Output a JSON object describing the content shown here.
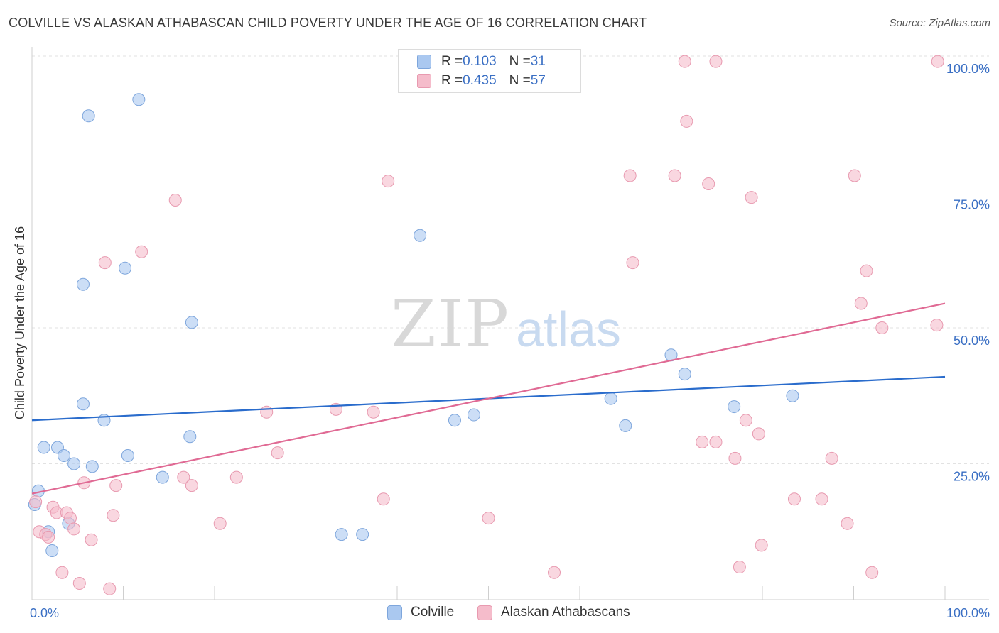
{
  "title": "COLVILLE VS ALASKAN ATHABASCAN CHILD POVERTY UNDER THE AGE OF 16 CORRELATION CHART",
  "source": "Source: ZipAtlas.com",
  "watermark": {
    "zip": "ZIP",
    "atlas": "atlas"
  },
  "legend_top": {
    "rows": [
      {
        "r_label": "R = ",
        "r_value": "0.103",
        "n_label": "N = ",
        "n_value": "31",
        "color": "#aac8f0"
      },
      {
        "r_label": "R = ",
        "r_value": "0.435",
        "n_label": "N = ",
        "n_value": "57",
        "color": "#f5bccb"
      }
    ]
  },
  "legend_bottom": [
    {
      "label": "Colville",
      "color": "#aac8f0"
    },
    {
      "label": "Alaskan Athabascans",
      "color": "#f5bccb"
    }
  ],
  "chart_data": {
    "type": "scatter",
    "title": "COLVILLE VS ALASKAN ATHABASCAN CHILD POVERTY UNDER THE AGE OF 16 CORRELATION CHART",
    "xlabel": "",
    "ylabel": "Child Poverty Under the Age of 16",
    "xlim": [
      0,
      100
    ],
    "ylim": [
      0,
      100
    ],
    "x_tick_labels": [
      "0.0%",
      "100.0%"
    ],
    "y_tick_labels": [
      "25.0%",
      "50.0%",
      "75.0%",
      "100.0%"
    ],
    "y_ticks": [
      25,
      50,
      75,
      100
    ],
    "grid": true,
    "series": [
      {
        "name": "Colville",
        "color": "#aac8f0",
        "stroke": "#7ea6dc",
        "trend_color": "#2a6ccc",
        "trend": {
          "x": [
            0,
            100
          ],
          "y": [
            33.0,
            41.0
          ]
        },
        "points": [
          [
            0.3,
            17.5
          ],
          [
            0.7,
            20.0
          ],
          [
            1.3,
            28.0
          ],
          [
            1.8,
            12.5
          ],
          [
            2.2,
            9.0
          ],
          [
            2.8,
            28.0
          ],
          [
            3.5,
            26.5
          ],
          [
            4.0,
            14.0
          ],
          [
            4.6,
            25.0
          ],
          [
            5.6,
            36.0
          ],
          [
            5.6,
            58.0
          ],
          [
            6.2,
            89.0
          ],
          [
            6.6,
            24.5
          ],
          [
            7.9,
            33.0
          ],
          [
            10.2,
            61.0
          ],
          [
            10.5,
            26.5
          ],
          [
            11.7,
            92.0
          ],
          [
            14.3,
            22.5
          ],
          [
            17.3,
            30.0
          ],
          [
            17.5,
            51.0
          ],
          [
            33.9,
            12.0
          ],
          [
            36.2,
            12.0
          ],
          [
            42.5,
            67.0
          ],
          [
            46.3,
            33.0
          ],
          [
            48.4,
            34.0
          ],
          [
            63.4,
            37.0
          ],
          [
            65.0,
            32.0
          ],
          [
            70.0,
            45.0
          ],
          [
            71.5,
            41.5
          ],
          [
            76.9,
            35.5
          ],
          [
            83.3,
            37.5
          ]
        ]
      },
      {
        "name": "Alaskan Athabascans",
        "color": "#f5bccb",
        "stroke": "#e89ab0",
        "trend_color": "#e06a94",
        "trend": {
          "x": [
            0,
            100
          ],
          "y": [
            19.5,
            54.5
          ]
        },
        "points": [
          [
            0.4,
            18.0
          ],
          [
            0.8,
            12.5
          ],
          [
            1.5,
            12.0
          ],
          [
            1.8,
            11.5
          ],
          [
            2.3,
            17.0
          ],
          [
            2.7,
            16.0
          ],
          [
            3.3,
            5.0
          ],
          [
            3.8,
            16.0
          ],
          [
            4.2,
            15.0
          ],
          [
            4.6,
            13.0
          ],
          [
            5.2,
            3.0
          ],
          [
            5.7,
            21.5
          ],
          [
            6.5,
            11.0
          ],
          [
            8.0,
            62.0
          ],
          [
            8.5,
            2.0
          ],
          [
            8.9,
            15.5
          ],
          [
            9.2,
            21.0
          ],
          [
            12.0,
            64.0
          ],
          [
            15.7,
            73.5
          ],
          [
            16.6,
            22.5
          ],
          [
            17.5,
            21.0
          ],
          [
            20.6,
            14.0
          ],
          [
            22.4,
            22.5
          ],
          [
            25.7,
            34.5
          ],
          [
            26.9,
            27.0
          ],
          [
            33.3,
            35.0
          ],
          [
            37.4,
            34.5
          ],
          [
            38.5,
            18.5
          ],
          [
            39.0,
            77.0
          ],
          [
            50.0,
            15.0
          ],
          [
            57.2,
            5.0
          ],
          [
            65.5,
            78.0
          ],
          [
            65.8,
            62.0
          ],
          [
            70.4,
            78.0
          ],
          [
            71.5,
            99.0
          ],
          [
            71.7,
            88.0
          ],
          [
            73.4,
            29.0
          ],
          [
            74.1,
            76.5
          ],
          [
            74.9,
            99.0
          ],
          [
            74.9,
            29.0
          ],
          [
            77.0,
            26.0
          ],
          [
            77.5,
            6.0
          ],
          [
            78.2,
            33.0
          ],
          [
            78.8,
            74.0
          ],
          [
            79.6,
            30.5
          ],
          [
            79.9,
            10.0
          ],
          [
            83.5,
            18.5
          ],
          [
            86.5,
            18.5
          ],
          [
            87.6,
            26.0
          ],
          [
            89.3,
            14.0
          ],
          [
            90.1,
            78.0
          ],
          [
            90.8,
            54.5
          ],
          [
            91.4,
            60.5
          ],
          [
            92.0,
            5.0
          ],
          [
            93.1,
            50.0
          ],
          [
            99.1,
            50.5
          ],
          [
            99.2,
            99.0
          ]
        ]
      }
    ]
  }
}
